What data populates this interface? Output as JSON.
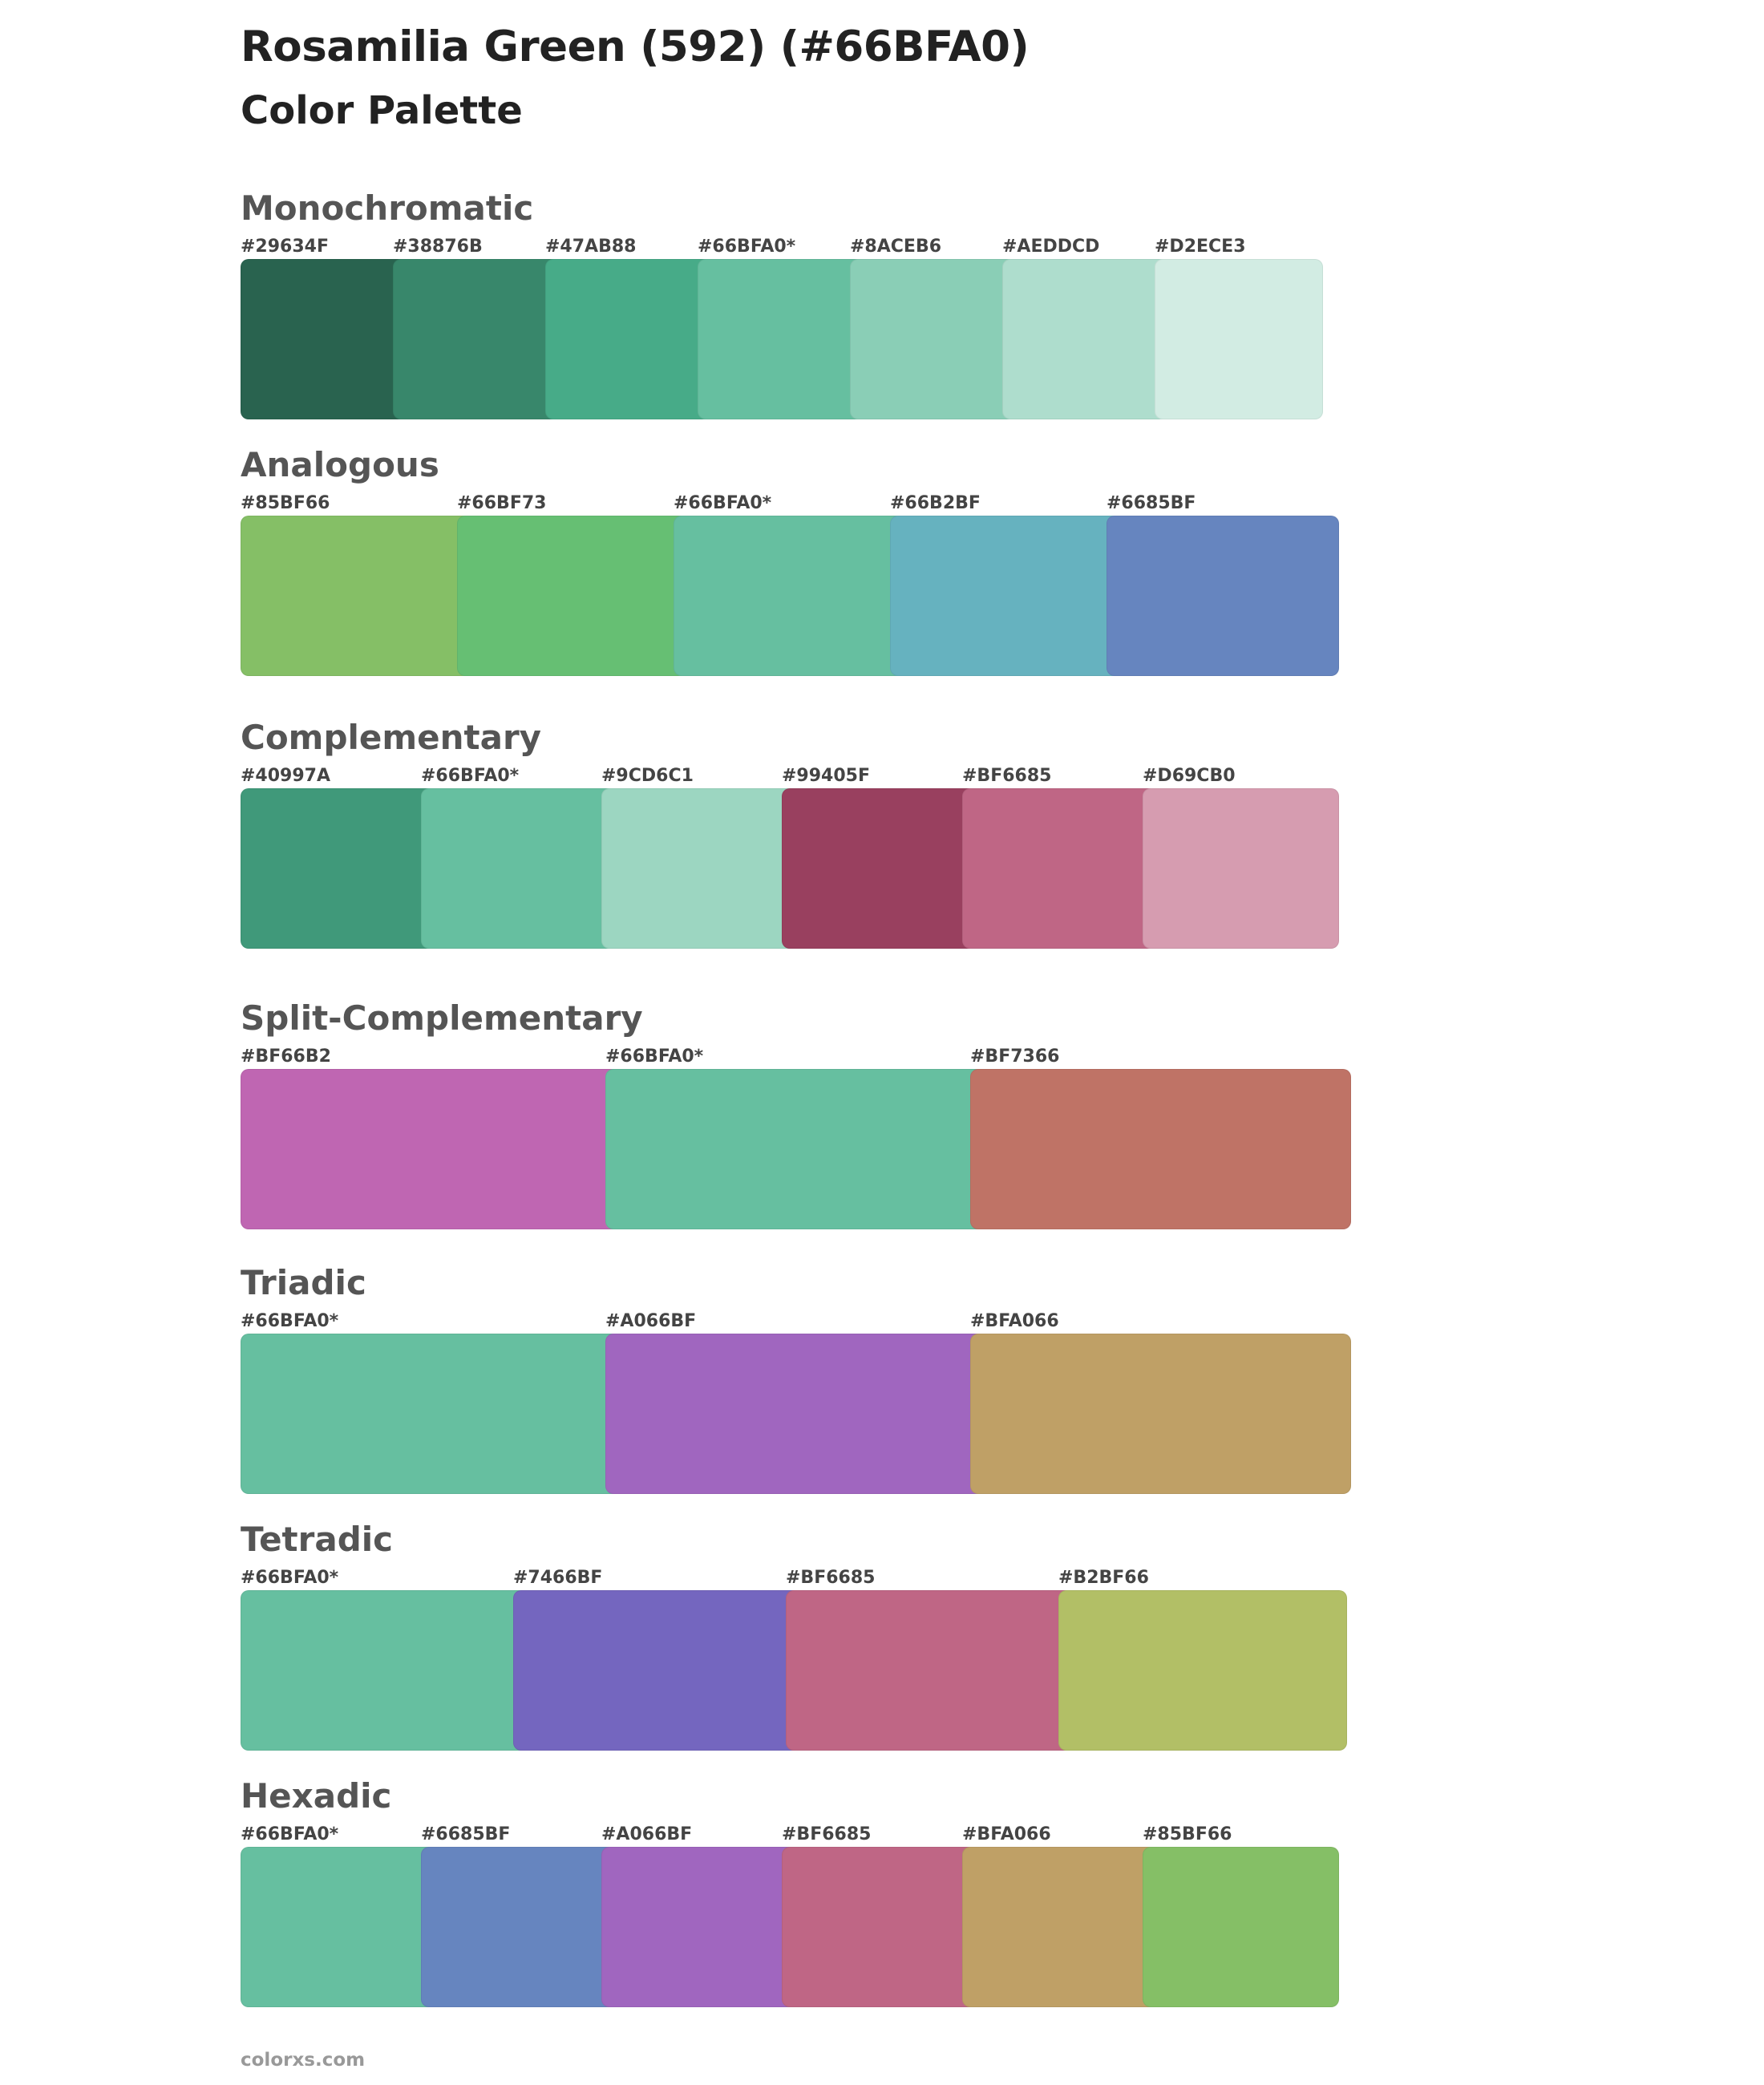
{
  "title": "Rosamilia Green (592) (#66BFA0)",
  "subtitle": "Color Palette",
  "footer": "colorxs.com",
  "sections": [
    {
      "name": "Monochromatic",
      "colors": [
        {
          "label": "#29634F",
          "hex": "#29634F"
        },
        {
          "label": "#38876B",
          "hex": "#38876B"
        },
        {
          "label": "#47AB88",
          "hex": "#47AB88"
        },
        {
          "label": "#66BFA0*",
          "hex": "#66BFA0"
        },
        {
          "label": "#8ACEB6",
          "hex": "#8ACEB6"
        },
        {
          "label": "#AEDDCD",
          "hex": "#AEDDCD"
        },
        {
          "label": "#D2ECE3",
          "hex": "#D2ECE3"
        }
      ]
    },
    {
      "name": "Analogous",
      "colors": [
        {
          "label": "#85BF66",
          "hex": "#85BF66"
        },
        {
          "label": "#66BF73",
          "hex": "#66BF73"
        },
        {
          "label": "#66BFA0*",
          "hex": "#66BFA0"
        },
        {
          "label": "#66B2BF",
          "hex": "#66B2BF"
        },
        {
          "label": "#6685BF",
          "hex": "#6685BF"
        }
      ]
    },
    {
      "name": "Complementary",
      "colors": [
        {
          "label": "#40997A",
          "hex": "#40997A"
        },
        {
          "label": "#66BFA0*",
          "hex": "#66BFA0"
        },
        {
          "label": "#9CD6C1",
          "hex": "#9CD6C1"
        },
        {
          "label": "#99405F",
          "hex": "#99405F"
        },
        {
          "label": "#BF6685",
          "hex": "#BF6685"
        },
        {
          "label": "#D69CB0",
          "hex": "#D69CB0"
        }
      ]
    },
    {
      "name": "Split-Complementary",
      "colors": [
        {
          "label": "#BF66B2",
          "hex": "#BF66B2"
        },
        {
          "label": "#66BFA0*",
          "hex": "#66BFA0"
        },
        {
          "label": "#BF7366",
          "hex": "#BF7366"
        }
      ]
    },
    {
      "name": "Triadic",
      "colors": [
        {
          "label": "#66BFA0*",
          "hex": "#66BFA0"
        },
        {
          "label": "#A066BF",
          "hex": "#A066BF"
        },
        {
          "label": "#BFA066",
          "hex": "#BFA066"
        }
      ]
    },
    {
      "name": "Tetradic",
      "colors": [
        {
          "label": "#66BFA0*",
          "hex": "#66BFA0"
        },
        {
          "label": "#7466BF",
          "hex": "#7466BF"
        },
        {
          "label": "#BF6685",
          "hex": "#BF6685"
        },
        {
          "label": "#B2BF66",
          "hex": "#B2BF66"
        }
      ]
    },
    {
      "name": "Hexadic",
      "colors": [
        {
          "label": "#66BFA0*",
          "hex": "#66BFA0"
        },
        {
          "label": "#6685BF",
          "hex": "#6685BF"
        },
        {
          "label": "#A066BF",
          "hex": "#A066BF"
        },
        {
          "label": "#BF6685",
          "hex": "#BF6685"
        },
        {
          "label": "#BFA066",
          "hex": "#BFA066"
        },
        {
          "label": "#85BF66",
          "hex": "#85BF66"
        }
      ]
    }
  ]
}
